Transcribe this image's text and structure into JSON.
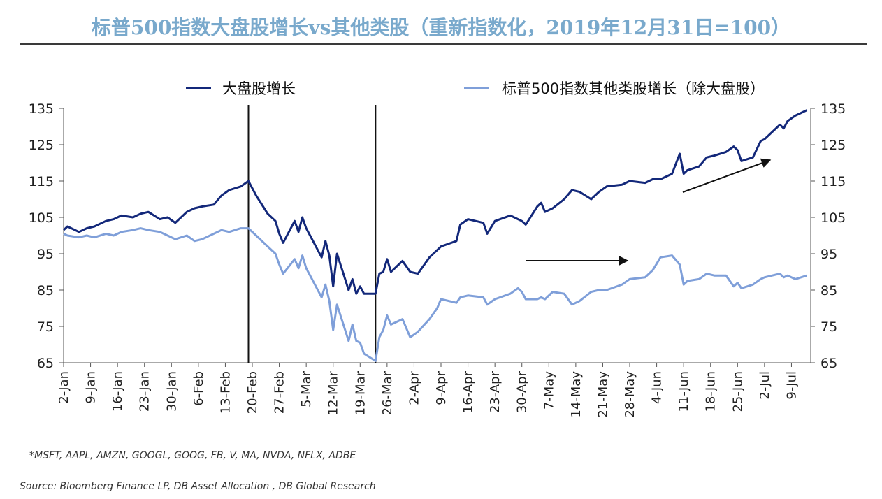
{
  "title": "标普500指数大盘股增长vs其他类股（重新指数化，2019年12月31日=100）",
  "footnote": "*MSFT, AAPL, AMZN, GOOGL, GOOG, FB, V, MA, NVDA, NFLX, ADBE",
  "source": "Source: Bloomberg Finance LP, DB Asset Allocation , DB Global Research",
  "colors": {
    "mega_cap": "#13287a",
    "rest": "#7f9fd9",
    "arrow": "#111111",
    "title": "#79a9cc"
  },
  "chart_data": {
    "type": "line",
    "ylim": [
      65,
      135
    ],
    "yticks": [
      65,
      75,
      85,
      95,
      105,
      115,
      125,
      135
    ],
    "ytick_labels": [
      "65",
      "75",
      "85",
      "95",
      "105",
      "115",
      "125",
      "135"
    ],
    "x_range": [
      "2020-01-02",
      "2020-07-14"
    ],
    "xticks": [
      "2-Jan",
      "9-Jan",
      "16-Jan",
      "23-Jan",
      "30-Jan",
      "6-Feb",
      "13-Feb",
      "20-Feb",
      "27-Feb",
      "5-Mar",
      "12-Mar",
      "19-Mar",
      "26-Mar",
      "2-Apr",
      "9-Apr",
      "16-Apr",
      "23-Apr",
      "30-Apr",
      "7-May",
      "14-May",
      "21-May",
      "28-May",
      "4-Jun",
      "11-Jun",
      "18-Jun",
      "25-Jun",
      "2-Jul",
      "9-Jul"
    ],
    "legend_position": "top",
    "grid": false,
    "vlines": [
      "2020-02-19",
      "2020-03-23"
    ],
    "series": [
      {
        "name": "大盘股增长",
        "points": [
          [
            "2020-01-02",
            101.5
          ],
          [
            "2020-01-03",
            102.5
          ],
          [
            "2020-01-06",
            101
          ],
          [
            "2020-01-08",
            102
          ],
          [
            "2020-01-10",
            102.5
          ],
          [
            "2020-01-13",
            104
          ],
          [
            "2020-01-15",
            104.5
          ],
          [
            "2020-01-17",
            105.5
          ],
          [
            "2020-01-20",
            105
          ],
          [
            "2020-01-22",
            106
          ],
          [
            "2020-01-24",
            106.5
          ],
          [
            "2020-01-27",
            104.5
          ],
          [
            "2020-01-29",
            105
          ],
          [
            "2020-01-31",
            103.5
          ],
          [
            "2020-02-03",
            106.5
          ],
          [
            "2020-02-05",
            107.5
          ],
          [
            "2020-02-07",
            108
          ],
          [
            "2020-02-10",
            108.5
          ],
          [
            "2020-02-12",
            111
          ],
          [
            "2020-02-14",
            112.5
          ],
          [
            "2020-02-17",
            113.5
          ],
          [
            "2020-02-19",
            115
          ],
          [
            "2020-02-21",
            111
          ],
          [
            "2020-02-24",
            106
          ],
          [
            "2020-02-26",
            104
          ],
          [
            "2020-02-27",
            100.5
          ],
          [
            "2020-02-28",
            98
          ],
          [
            "2020-03-02",
            104
          ],
          [
            "2020-03-03",
            101
          ],
          [
            "2020-03-04",
            105
          ],
          [
            "2020-03-05",
            102
          ],
          [
            "2020-03-06",
            100
          ],
          [
            "2020-03-09",
            94
          ],
          [
            "2020-03-10",
            98.5
          ],
          [
            "2020-03-11",
            94.5
          ],
          [
            "2020-03-12",
            86
          ],
          [
            "2020-03-13",
            95
          ],
          [
            "2020-03-16",
            85
          ],
          [
            "2020-03-17",
            88
          ],
          [
            "2020-03-18",
            84
          ],
          [
            "2020-03-19",
            86
          ],
          [
            "2020-03-20",
            84
          ],
          [
            "2020-03-23",
            84
          ],
          [
            "2020-03-24",
            89.5
          ],
          [
            "2020-03-25",
            90
          ],
          [
            "2020-03-26",
            93.5
          ],
          [
            "2020-03-27",
            90
          ],
          [
            "2020-03-30",
            93
          ],
          [
            "2020-04-01",
            90
          ],
          [
            "2020-04-03",
            89.5
          ],
          [
            "2020-04-06",
            94
          ],
          [
            "2020-04-08",
            96
          ],
          [
            "2020-04-09",
            97
          ],
          [
            "2020-04-13",
            98.5
          ],
          [
            "2020-04-14",
            103
          ],
          [
            "2020-04-16",
            104.5
          ],
          [
            "2020-04-20",
            103.5
          ],
          [
            "2020-04-21",
            100.5
          ],
          [
            "2020-04-23",
            104
          ],
          [
            "2020-04-27",
            105.5
          ],
          [
            "2020-04-29",
            104.5
          ],
          [
            "2020-04-30",
            104
          ],
          [
            "2020-05-01",
            103
          ],
          [
            "2020-05-04",
            108
          ],
          [
            "2020-05-05",
            109
          ],
          [
            "2020-05-06",
            106.5
          ],
          [
            "2020-05-08",
            107.5
          ],
          [
            "2020-05-11",
            110
          ],
          [
            "2020-05-13",
            112.5
          ],
          [
            "2020-05-15",
            112
          ],
          [
            "2020-05-18",
            110
          ],
          [
            "2020-05-20",
            112
          ],
          [
            "2020-05-22",
            113.5
          ],
          [
            "2020-05-26",
            114
          ],
          [
            "2020-05-28",
            115
          ],
          [
            "2020-06-01",
            114.5
          ],
          [
            "2020-06-03",
            115.5
          ],
          [
            "2020-06-05",
            115.5
          ],
          [
            "2020-06-08",
            117
          ],
          [
            "2020-06-10",
            122.5
          ],
          [
            "2020-06-11",
            117
          ],
          [
            "2020-06-12",
            118
          ],
          [
            "2020-06-15",
            119
          ],
          [
            "2020-06-17",
            121.5
          ],
          [
            "2020-06-19",
            122
          ],
          [
            "2020-06-22",
            123
          ],
          [
            "2020-06-24",
            124.5
          ],
          [
            "2020-06-25",
            123.5
          ],
          [
            "2020-06-26",
            120.5
          ],
          [
            "2020-06-29",
            121.5
          ],
          [
            "2020-07-01",
            126
          ],
          [
            "2020-07-02",
            126.5
          ],
          [
            "2020-07-06",
            130.5
          ],
          [
            "2020-07-07",
            129.5
          ],
          [
            "2020-07-08",
            131.5
          ],
          [
            "2020-07-10",
            133
          ],
          [
            "2020-07-13",
            134.5
          ]
        ]
      },
      {
        "name": "标普500指数其他类股增长（除大盘股）",
        "points": [
          [
            "2020-01-02",
            100.5
          ],
          [
            "2020-01-03",
            100
          ],
          [
            "2020-01-06",
            99.5
          ],
          [
            "2020-01-08",
            100
          ],
          [
            "2020-01-10",
            99.5
          ],
          [
            "2020-01-13",
            100.5
          ],
          [
            "2020-01-15",
            100
          ],
          [
            "2020-01-17",
            101
          ],
          [
            "2020-01-20",
            101.5
          ],
          [
            "2020-01-22",
            102
          ],
          [
            "2020-01-24",
            101.5
          ],
          [
            "2020-01-27",
            101
          ],
          [
            "2020-01-29",
            100
          ],
          [
            "2020-01-31",
            99
          ],
          [
            "2020-02-03",
            100
          ],
          [
            "2020-02-05",
            98.5
          ],
          [
            "2020-02-07",
            99
          ],
          [
            "2020-02-10",
            100.5
          ],
          [
            "2020-02-12",
            101.5
          ],
          [
            "2020-02-14",
            101
          ],
          [
            "2020-02-17",
            102
          ],
          [
            "2020-02-19",
            102
          ],
          [
            "2020-02-21",
            100
          ],
          [
            "2020-02-24",
            97
          ],
          [
            "2020-02-26",
            95
          ],
          [
            "2020-02-27",
            92
          ],
          [
            "2020-02-28",
            89.5
          ],
          [
            "2020-03-02",
            93.5
          ],
          [
            "2020-03-03",
            91
          ],
          [
            "2020-03-04",
            94.5
          ],
          [
            "2020-03-05",
            91
          ],
          [
            "2020-03-06",
            89
          ],
          [
            "2020-03-09",
            83
          ],
          [
            "2020-03-10",
            86.5
          ],
          [
            "2020-03-11",
            82
          ],
          [
            "2020-03-12",
            74
          ],
          [
            "2020-03-13",
            81
          ],
          [
            "2020-03-16",
            71
          ],
          [
            "2020-03-17",
            75.5
          ],
          [
            "2020-03-18",
            71
          ],
          [
            "2020-03-19",
            70.5
          ],
          [
            "2020-03-20",
            67.5
          ],
          [
            "2020-03-23",
            65.5
          ],
          [
            "2020-03-24",
            72
          ],
          [
            "2020-03-25",
            74
          ],
          [
            "2020-03-26",
            78
          ],
          [
            "2020-03-27",
            75.5
          ],
          [
            "2020-03-30",
            77
          ],
          [
            "2020-04-01",
            72
          ],
          [
            "2020-04-03",
            73.5
          ],
          [
            "2020-04-06",
            77
          ],
          [
            "2020-04-08",
            80
          ],
          [
            "2020-04-09",
            82.5
          ],
          [
            "2020-04-13",
            81.5
          ],
          [
            "2020-04-14",
            83
          ],
          [
            "2020-04-16",
            83.5
          ],
          [
            "2020-04-20",
            83
          ],
          [
            "2020-04-21",
            81
          ],
          [
            "2020-04-23",
            82.5
          ],
          [
            "2020-04-27",
            84
          ],
          [
            "2020-04-29",
            85.5
          ],
          [
            "2020-04-30",
            84.5
          ],
          [
            "2020-05-01",
            82.5
          ],
          [
            "2020-05-04",
            82.5
          ],
          [
            "2020-05-05",
            83
          ],
          [
            "2020-05-06",
            82.5
          ],
          [
            "2020-05-08",
            84.5
          ],
          [
            "2020-05-11",
            84
          ],
          [
            "2020-05-13",
            81
          ],
          [
            "2020-05-15",
            82
          ],
          [
            "2020-05-18",
            84.5
          ],
          [
            "2020-05-20",
            85
          ],
          [
            "2020-05-22",
            85
          ],
          [
            "2020-05-26",
            86.5
          ],
          [
            "2020-05-28",
            88
          ],
          [
            "2020-06-01",
            88.5
          ],
          [
            "2020-06-03",
            90.5
          ],
          [
            "2020-06-05",
            94
          ],
          [
            "2020-06-08",
            94.5
          ],
          [
            "2020-06-10",
            92
          ],
          [
            "2020-06-11",
            86.5
          ],
          [
            "2020-06-12",
            87.5
          ],
          [
            "2020-06-15",
            88
          ],
          [
            "2020-06-17",
            89.5
          ],
          [
            "2020-06-19",
            89
          ],
          [
            "2020-06-22",
            89
          ],
          [
            "2020-06-24",
            86
          ],
          [
            "2020-06-25",
            87
          ],
          [
            "2020-06-26",
            85.5
          ],
          [
            "2020-06-29",
            86.5
          ],
          [
            "2020-07-01",
            88
          ],
          [
            "2020-07-02",
            88.5
          ],
          [
            "2020-07-06",
            89.5
          ],
          [
            "2020-07-07",
            88.5
          ],
          [
            "2020-07-08",
            89
          ],
          [
            "2020-07-10",
            88
          ],
          [
            "2020-07-13",
            89
          ]
        ]
      }
    ]
  }
}
